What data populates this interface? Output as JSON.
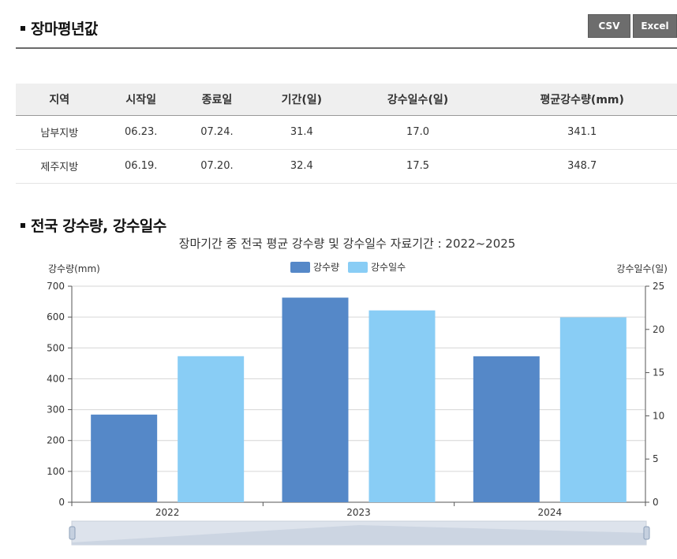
{
  "section1": {
    "title": "장마평년값"
  },
  "buttons": {
    "csv": "CSV",
    "excel": "Excel"
  },
  "table": {
    "headers": [
      "지역",
      "시작일",
      "종료일",
      "기간(일)",
      "강수일수(일)",
      "평균강수량(mm)"
    ],
    "rows": [
      [
        "남부지방",
        "06.23.",
        "07.24.",
        "31.4",
        "17.0",
        "341.1"
      ],
      [
        "제주지방",
        "06.19.",
        "07.20.",
        "32.4",
        "17.5",
        "348.7"
      ]
    ]
  },
  "section2": {
    "title": "전국 강수량, 강수일수"
  },
  "chart_data": {
    "type": "bar",
    "title": "장마기간 중 전국 평균 강수량 및 강수일수 자료기간 : 2022~2025",
    "categories": [
      "2022",
      "2023",
      "2024"
    ],
    "series": [
      {
        "name": "강수량",
        "axis": "left",
        "color": "#5588c8",
        "values": [
          284,
          663,
          473
        ]
      },
      {
        "name": "강수일수",
        "axis": "right",
        "color": "#89cdf5",
        "values": [
          16.9,
          22.2,
          21.4
        ]
      }
    ],
    "ylabel_left": "강수량(mm)",
    "ylabel_right": "강수일수(일)",
    "ylim_left": [
      0,
      700
    ],
    "ylim_right": [
      0,
      25
    ],
    "yticks_left": [
      0,
      100,
      200,
      300,
      400,
      500,
      600,
      700
    ],
    "yticks_right": [
      0,
      5,
      10,
      15,
      20,
      25
    ],
    "grid": true,
    "legend": "top-center"
  }
}
